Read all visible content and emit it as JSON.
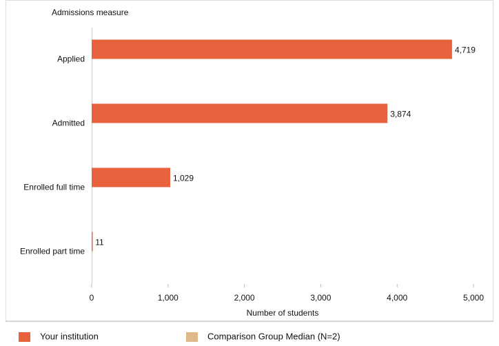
{
  "chart_data": {
    "type": "barh",
    "title": "Admissions measure",
    "xlabel": "Number of students",
    "categories": [
      "Applied",
      "Admitted",
      "Enrolled full time",
      "Enrolled part time"
    ],
    "series": [
      {
        "name": "Your institution",
        "color": "#e8623e",
        "values": [
          4719,
          3874,
          1029,
          11
        ],
        "value_labels": [
          "4,719",
          "3,874",
          "1,029",
          "11"
        ]
      },
      {
        "name": "Comparison Group Median (N=2)",
        "color": "#e0b98a",
        "values": [
          null,
          null,
          null,
          null
        ]
      }
    ],
    "xlim": [
      0,
      5000
    ],
    "xticks": [
      0,
      {
        "value": 1000,
        "label": "1,000"
      },
      {
        "value": 2000,
        "label": "2,000"
      },
      {
        "value": 3000,
        "label": "3,000"
      },
      {
        "value": 4000,
        "label": "4,000"
      },
      {
        "value": 5000,
        "label": "5,000"
      }
    ],
    "legend": "bottom"
  }
}
